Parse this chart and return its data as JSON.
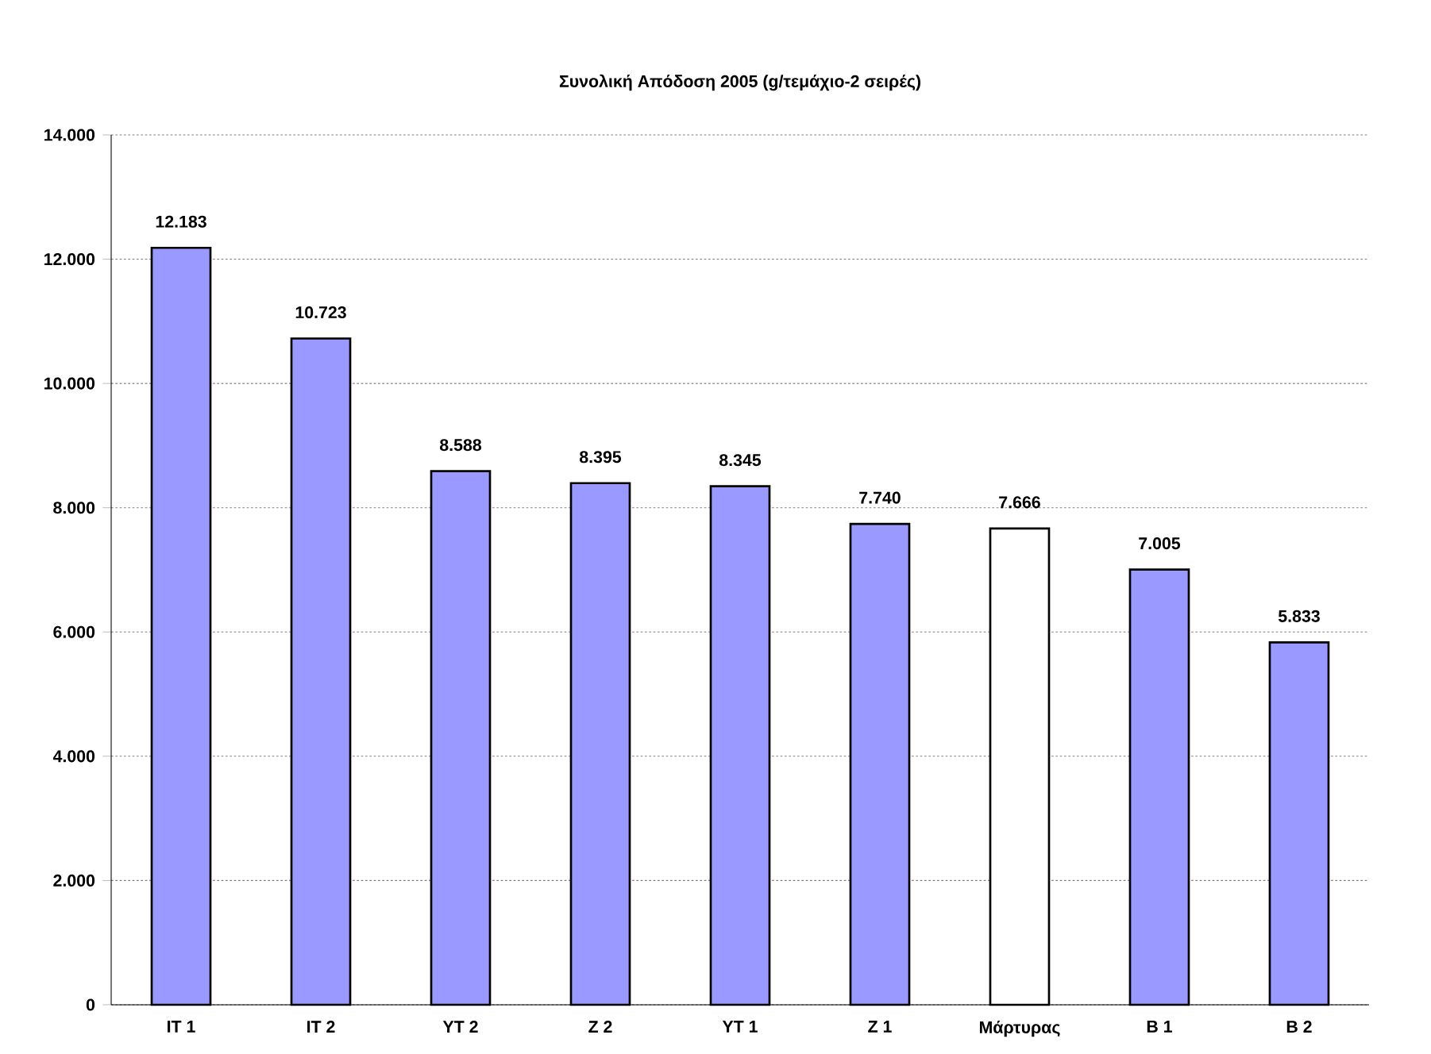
{
  "chart_data": {
    "type": "bar",
    "title": "Συνολική Απόδοση  2005 (g/τεμάχιο-2 σειρές)",
    "categories": [
      "ΙΤ 1",
      "ΙΤ 2",
      "ΥΤ 2",
      "Ζ 2",
      "ΥΤ 1",
      "Ζ 1",
      "Μάρτυρας",
      "Β 1",
      "Β 2"
    ],
    "values": [
      12183,
      10723,
      8588,
      8395,
      8345,
      7740,
      7666,
      7005,
      5833
    ],
    "colors": [
      "#9999ff",
      "#9999ff",
      "#9999ff",
      "#9999ff",
      "#9999ff",
      "#9999ff",
      "#ffffff",
      "#9999ff",
      "#9999ff"
    ],
    "value_labels": [
      "12.183",
      "10.723",
      "8.588",
      "8.395",
      "8.345",
      "7.740",
      "7.666",
      "7.005",
      "5.833"
    ],
    "ylim": [
      0,
      14000
    ],
    "yticks": [
      0,
      {
        "value": 2000,
        "label": "2.000"
      },
      {
        "value": 4000,
        "label": "4.000"
      },
      {
        "value": 6000,
        "label": "6.000"
      },
      {
        "value": 8000,
        "label": "8.000"
      },
      {
        "value": 10000,
        "label": "10.000"
      },
      {
        "value": 12000,
        "label": "12.000"
      },
      {
        "value": 14000,
        "label": "14.000"
      }
    ],
    "grid": "y"
  }
}
